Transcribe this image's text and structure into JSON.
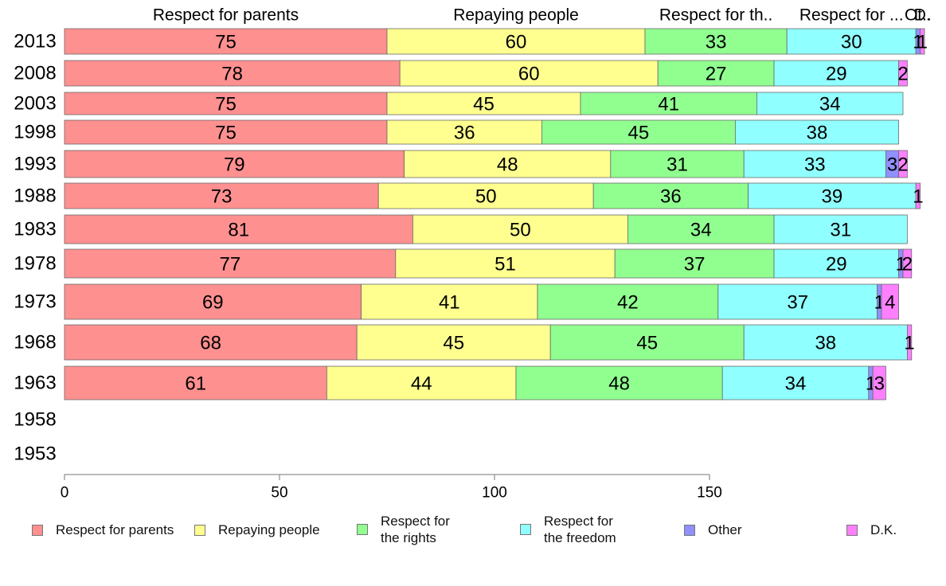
{
  "chart_data": {
    "type": "bar",
    "orientation": "horizontal",
    "stacked": true,
    "categories": [
      "2013",
      "2008",
      "2003",
      "1998",
      "1993",
      "1988",
      "1983",
      "1978",
      "1973",
      "1968",
      "1963",
      "1958",
      "1953"
    ],
    "series": [
      {
        "name": "Respect for parents",
        "short_label": "Respect for parents",
        "color": "#ff9090",
        "values": [
          75,
          78,
          75,
          75,
          79,
          73,
          81,
          77,
          69,
          68,
          61,
          null,
          null
        ]
      },
      {
        "name": "Repaying people",
        "short_label": "Repaying people",
        "color": "#ffff90",
        "values": [
          60,
          60,
          45,
          36,
          48,
          50,
          50,
          51,
          41,
          45,
          44,
          null,
          null
        ]
      },
      {
        "name": "Respect for the rights",
        "short_label": "Respect for th..",
        "color": "#90ff90",
        "values": [
          33,
          27,
          41,
          45,
          31,
          36,
          34,
          37,
          42,
          45,
          48,
          null,
          null
        ]
      },
      {
        "name": "Respect for the freedom",
        "short_label": "Respect for ...",
        "color": "#90ffff",
        "values": [
          30,
          29,
          34,
          38,
          33,
          39,
          31,
          29,
          37,
          38,
          34,
          null,
          null
        ]
      },
      {
        "name": "Other",
        "short_label": "Ot..",
        "color": "#9090ff",
        "values": [
          1,
          0,
          0,
          0,
          3,
          0,
          0,
          1,
          1,
          0,
          1,
          null,
          null
        ]
      },
      {
        "name": "D.K.",
        "short_label": "D.",
        "color": "#ff80ff",
        "values": [
          1,
          2,
          0,
          0,
          2,
          1,
          0,
          2,
          4,
          1,
          3,
          null,
          null
        ]
      }
    ],
    "x_ticks": [
      "0",
      "50",
      "100",
      "150"
    ],
    "xlim": [
      0,
      200
    ],
    "legend": {
      "placement": "bottom",
      "items": [
        {
          "lines": [
            "Respect for parents"
          ],
          "color": "#ff9090"
        },
        {
          "lines": [
            "Repaying people"
          ],
          "color": "#ffff90"
        },
        {
          "lines": [
            "Respect for",
            "the rights"
          ],
          "color": "#90ff90"
        },
        {
          "lines": [
            "Respect for",
            "the freedom"
          ],
          "color": "#90ffff"
        },
        {
          "lines": [
            "Other"
          ],
          "color": "#9090ff"
        },
        {
          "lines": [
            "D.K."
          ],
          "color": "#ff80ff"
        }
      ]
    }
  }
}
